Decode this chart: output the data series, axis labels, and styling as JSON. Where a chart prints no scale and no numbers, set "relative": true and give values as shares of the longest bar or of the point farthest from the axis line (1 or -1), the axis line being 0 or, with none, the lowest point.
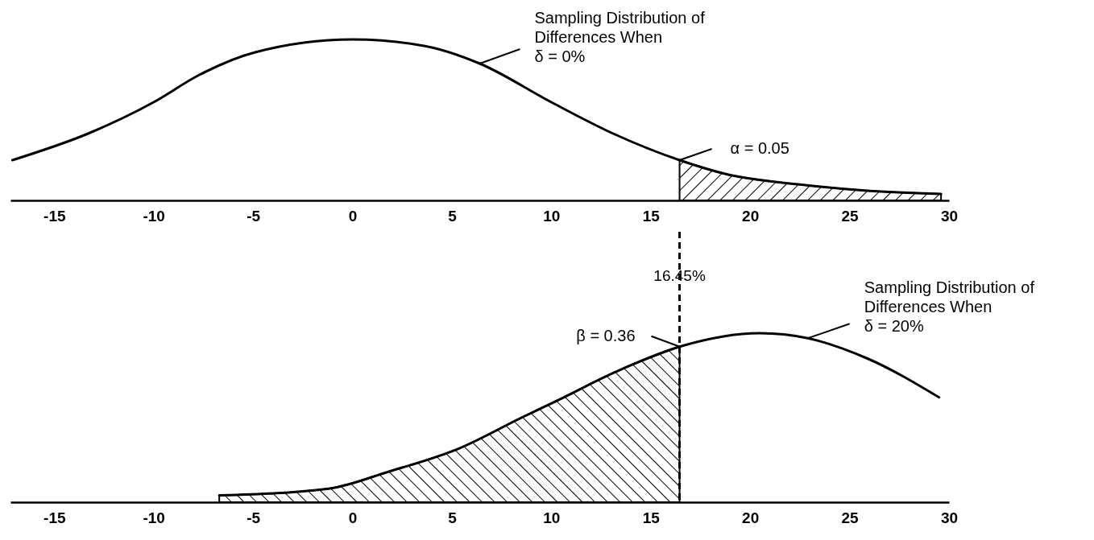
{
  "chart_data": [
    {
      "type": "line",
      "relative": true,
      "xlim": [
        -17.2,
        30
      ],
      "xticks": [
        -15,
        -10,
        -5,
        0,
        5,
        10,
        15,
        20,
        25,
        30
      ],
      "series": [
        {
          "color": "#000000",
          "x": [
            -17.1,
            -13.2,
            -10,
            -7.7,
            -4.9,
            0,
            3.6,
            6.4,
            10,
            13.2,
            16.45,
            18.9,
            22.4,
            25.9,
            29.6
          ],
          "values": [
            0.25,
            0.42,
            0.61,
            0.78,
            0.92,
            1,
            0.96,
            0.85,
            0.61,
            0.41,
            0.25,
            0.16,
            0.1,
            0.06,
            0.04
          ]
        },
        {
          "type": "area",
          "color": "#000000",
          "x": [
            16.45,
            18.9,
            22.4,
            25.9,
            29.6
          ],
          "values": [
            0.25,
            0.16,
            0.1,
            0.06,
            0.04
          ]
        }
      ],
      "annotations": [
        {
          "text": "Sampling Distribution of\nDifferences When\nδ = 0%",
          "x": 6.4,
          "y": 0.85
        },
        {
          "text": "α = 0.05",
          "x": 16.45,
          "y": 0.25
        }
      ]
    },
    {
      "type": "line",
      "relative": true,
      "xlim": [
        -17.2,
        30
      ],
      "xticks": [
        -15,
        -10,
        -5,
        0,
        5,
        10,
        15,
        20,
        25,
        30
      ],
      "series": [
        {
          "color": "#000000",
          "x": [
            -6.7,
            -1.2,
            1.8,
            5.4,
            8.5,
            10.1,
            13.6,
            16.45,
            20.5,
            22.9,
            25.9,
            29.5
          ],
          "values": [
            0.04,
            0.08,
            0.18,
            0.32,
            0.5,
            0.59,
            0.79,
            0.92,
            1,
            0.97,
            0.85,
            0.62
          ]
        },
        {
          "type": "area",
          "color": "#000000",
          "x": [
            -6.7,
            -1.2,
            1.8,
            5.4,
            8.5,
            10.1,
            13.6,
            16.45
          ],
          "values": [
            0.04,
            0.08,
            0.18,
            0.32,
            0.5,
            0.59,
            0.79,
            0.92
          ]
        }
      ],
      "ref_lines": [
        {
          "axis": "x",
          "value": 16.45,
          "label": "16.45%",
          "line_style": "dashed"
        }
      ],
      "annotations": [
        {
          "text": "β = 0.36",
          "x": 16.45,
          "y": 0.92
        },
        {
          "text": "Sampling Distribution of\nDifferences When\nδ = 20%",
          "x": 22.9,
          "y": 0.97
        }
      ]
    }
  ]
}
